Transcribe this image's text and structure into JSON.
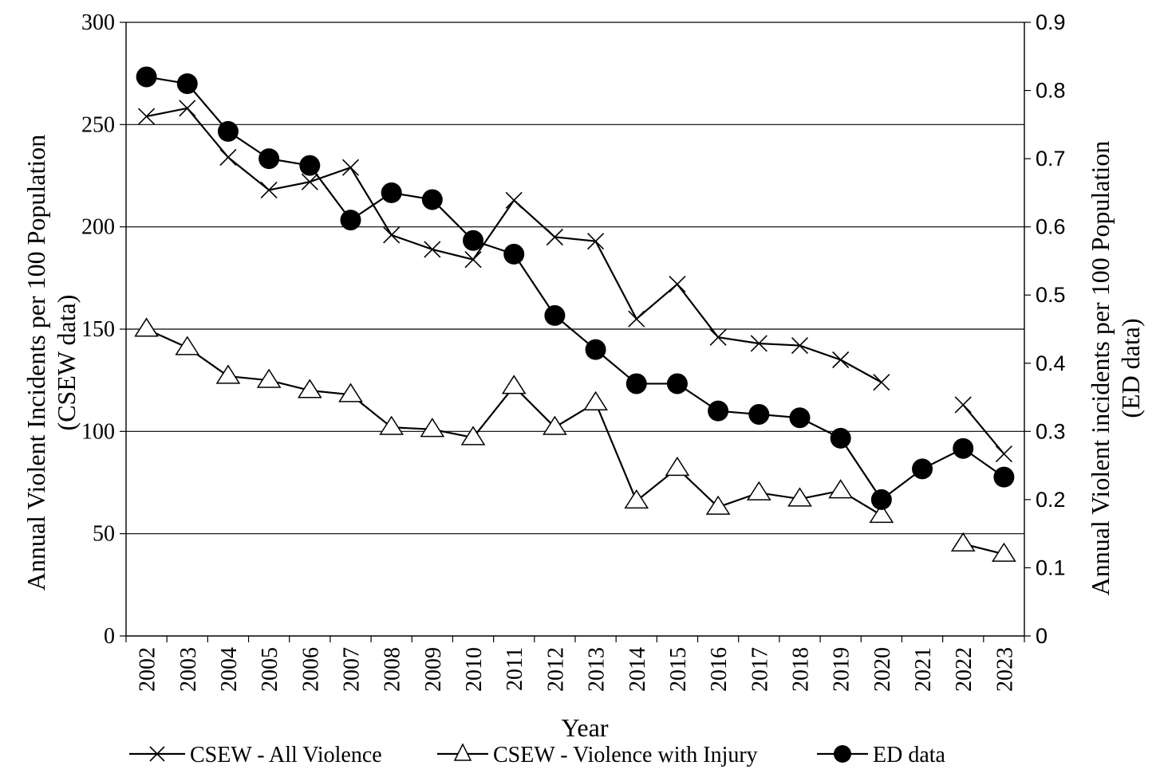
{
  "chart_data": {
    "type": "line",
    "xlabel": "Year",
    "ylabel_left_line1": "Annual Violent Incidents per 100 Population",
    "ylabel_left_line2": "(CSEW data)",
    "ylabel_right_line1": "Annual Violent incidents per 100 Population",
    "ylabel_right_line2": "(ED data)",
    "categories": [
      "2002",
      "2003",
      "2004",
      "2005",
      "2006",
      "2007",
      "2008",
      "2009",
      "2010",
      "2011",
      "2012",
      "2013",
      "2014",
      "2015",
      "2016",
      "2017",
      "2018",
      "2019",
      "2020",
      "2021",
      "2022",
      "2023"
    ],
    "ylim_left": [
      0,
      300
    ],
    "yticks_left": [
      "0",
      "50",
      "100",
      "150",
      "200",
      "250",
      "300"
    ],
    "ylim_right": [
      0,
      0.9
    ],
    "yticks_right": [
      "0",
      "0.1",
      "0.2",
      "0.3",
      "0.4",
      "0.5",
      "0.6",
      "0.7",
      "0.8",
      "0.9"
    ],
    "grid": true,
    "legend_position": "bottom",
    "series": [
      {
        "name": "CSEW - All Violence",
        "axis": "left",
        "marker": "x",
        "values": [
          254,
          258,
          234,
          218,
          222,
          229,
          196,
          189,
          184,
          213,
          195,
          193,
          155,
          172,
          146,
          143,
          142,
          135,
          124,
          null,
          113,
          89
        ]
      },
      {
        "name": "CSEW - Violence with Injury",
        "axis": "left",
        "marker": "triangle",
        "values": [
          150,
          141,
          127,
          125,
          120,
          118,
          102,
          101,
          97,
          122,
          102,
          114,
          66,
          82,
          63,
          70,
          67,
          71,
          59,
          null,
          45,
          40
        ]
      },
      {
        "name": "ED data",
        "axis": "right",
        "marker": "circle",
        "values": [
          0.82,
          0.81,
          0.74,
          0.7,
          0.69,
          0.61,
          0.65,
          0.64,
          0.58,
          0.56,
          0.47,
          0.42,
          0.37,
          0.37,
          0.33,
          0.325,
          0.32,
          0.29,
          0.2,
          0.245,
          0.275,
          0.233
        ]
      }
    ]
  }
}
